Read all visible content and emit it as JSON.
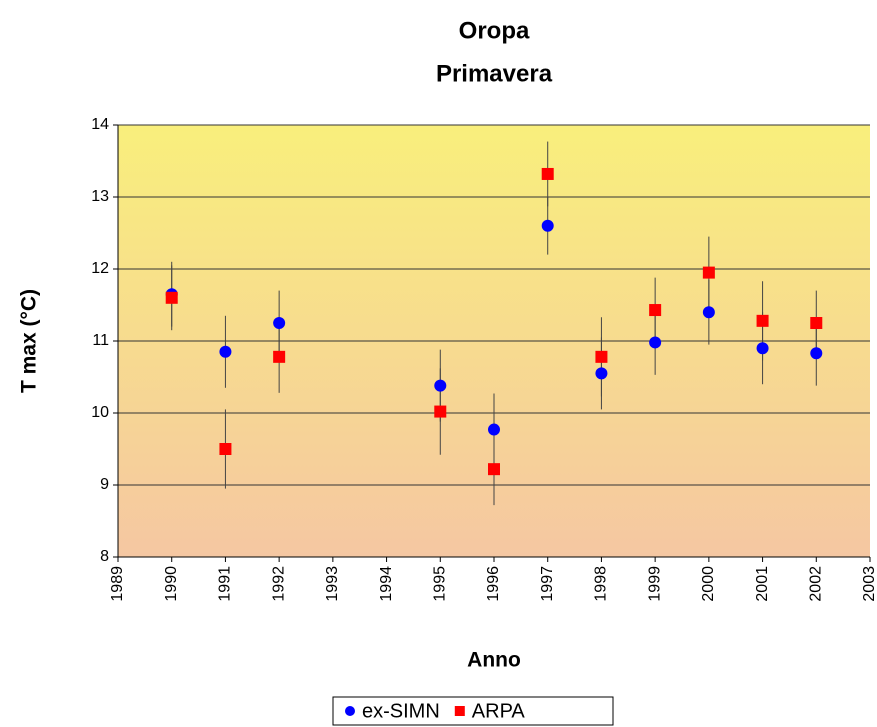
{
  "chart_data": {
    "type": "scatter",
    "title": "Oropa",
    "subtitle": "Primavera",
    "x_label": "Anno",
    "y_label": "T max (°C)",
    "x": [
      1990,
      1991,
      1992,
      1995,
      1996,
      1997,
      1998,
      1999,
      2000,
      2001,
      2002
    ],
    "series": [
      {
        "name": "ex-SIMN",
        "color": "#0000ff",
        "marker": "circle",
        "values": [
          11.65,
          10.85,
          11.25,
          10.38,
          9.77,
          12.6,
          10.55,
          10.98,
          11.4,
          10.9,
          10.83
        ],
        "errors": [
          0.45,
          0.5,
          0.45,
          0.5,
          0.5,
          0.4,
          0.5,
          0.45,
          0.45,
          0.5,
          0.45
        ]
      },
      {
        "name": "ARPA",
        "color": "#ff0000",
        "marker": "square",
        "values": [
          11.6,
          9.5,
          10.78,
          10.02,
          9.22,
          13.32,
          10.78,
          11.43,
          11.95,
          11.28,
          11.25
        ],
        "errors": [
          0.45,
          0.55,
          0.5,
          0.6,
          0.5,
          0.45,
          0.55,
          0.45,
          0.5,
          0.55,
          0.45
        ]
      }
    ],
    "xlim": [
      1989,
      2003
    ],
    "xticks": [
      1989,
      1990,
      1991,
      1992,
      1993,
      1994,
      1995,
      1996,
      1997,
      1998,
      1999,
      2000,
      2001,
      2002,
      2003
    ],
    "ylim": [
      8,
      14
    ],
    "yticks": [
      8,
      9,
      10,
      11,
      12,
      13,
      14
    ],
    "grid": true,
    "legend": "bottom"
  }
}
